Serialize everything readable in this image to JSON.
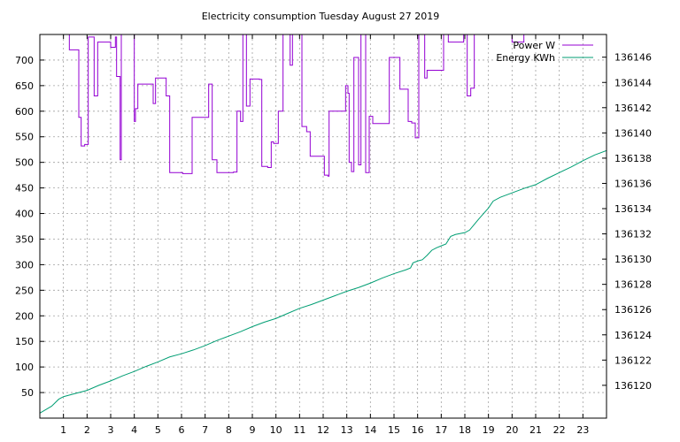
{
  "chart_data": {
    "type": "line",
    "title": "Electricity consumption Tuesday August 27 2019",
    "xlabel": "",
    "ylabel": "",
    "y2label": "",
    "xlim": [
      0,
      24
    ],
    "ylim": [
      0,
      750
    ],
    "y2lim": [
      136117.4,
      136147.8
    ],
    "x_ticks": [
      1,
      2,
      3,
      4,
      5,
      6,
      7,
      8,
      9,
      10,
      11,
      12,
      13,
      14,
      15,
      16,
      17,
      18,
      19,
      20,
      21,
      22,
      23
    ],
    "y_ticks": [
      50,
      100,
      150,
      200,
      250,
      300,
      350,
      400,
      450,
      500,
      550,
      600,
      650,
      700
    ],
    "y2_ticks": [
      136120,
      136122,
      136124,
      136126,
      136128,
      136130,
      136132,
      136134,
      136136,
      136138,
      136140,
      136142,
      136144,
      136146
    ],
    "grid": true,
    "legend_position": "top-right",
    "series": [
      {
        "name": "Power W",
        "axis": "y",
        "color": "#9400d3",
        "step": true,
        "x": [
          0.98,
          1.25,
          1.65,
          1.75,
          1.9,
          2.05,
          2.3,
          2.45,
          3.0,
          3.2,
          3.25,
          3.4,
          3.45,
          4.0,
          4.05,
          4.15,
          4.5,
          4.8,
          4.9,
          5.0,
          5.35,
          5.5,
          6.0,
          6.05,
          6.45,
          6.5,
          7.15,
          7.2,
          7.3,
          7.5,
          8.05,
          8.2,
          8.35,
          8.5,
          8.6,
          8.75,
          8.9,
          9.3,
          9.4,
          9.65,
          9.8,
          9.9,
          10.1,
          10.3,
          10.6,
          10.7,
          11.0,
          11.1,
          11.3,
          11.45,
          11.9,
          12.05,
          12.2,
          12.25,
          12.95,
          13.0,
          13.05,
          13.1,
          13.2,
          13.3,
          13.5,
          13.6,
          13.8,
          13.95,
          14.1,
          14.8,
          15.1,
          15.25,
          15.5,
          15.6,
          15.75,
          15.9,
          16.05,
          16.3,
          16.4,
          17.1,
          17.3,
          17.95,
          18.1,
          18.25,
          18.4,
          18.6,
          20.0,
          20.2,
          20.5,
          24.0
        ],
        "values": [
          750,
          720,
          588,
          532,
          535,
          745,
          630,
          735,
          725,
          745,
          668,
          505,
          750,
          580,
          605,
          653,
          653,
          615,
          665,
          665,
          630,
          480,
          480,
          478,
          588,
          588,
          653,
          653,
          505,
          480,
          480,
          481,
          600,
          580,
          750,
          610,
          663,
          662,
          492,
          490,
          540,
          537,
          600,
          750,
          690,
          750,
          750,
          570,
          560,
          512,
          512,
          475,
          473,
          600,
          650,
          650,
          635,
          500,
          482,
          705,
          495,
          750,
          480,
          590,
          576,
          705,
          705,
          643,
          643,
          580,
          577,
          548,
          750,
          665,
          680,
          750,
          735,
          750,
          630,
          645,
          750,
          750,
          735,
          735,
          750,
          750
        ]
      },
      {
        "name": "Energy KWh",
        "axis": "y2",
        "color": "#009e73",
        "step": false,
        "x": [
          0,
          0.5,
          0.8,
          1,
          1.5,
          2,
          2.5,
          3,
          3.5,
          4,
          4.5,
          5,
          5.5,
          6,
          6.5,
          7,
          7.5,
          8,
          8.5,
          9,
          9.5,
          10,
          10.5,
          11,
          11.5,
          12,
          12.5,
          13,
          13.5,
          14,
          14.5,
          15,
          15.5,
          15.7,
          15.8,
          16,
          16.2,
          16.4,
          16.6,
          16.8,
          17.0,
          17.2,
          17.4,
          17.6,
          18.0,
          18.2,
          18.6,
          19.0,
          19.2,
          19.5,
          20,
          20.5,
          21,
          21.5,
          22,
          22.5,
          23,
          23.5,
          24
        ],
        "values": [
          136117.8,
          136118.35,
          136118.9,
          136119.1,
          136119.35,
          136119.6,
          136120.0,
          136120.35,
          136120.75,
          136121.1,
          136121.5,
          136121.85,
          136122.25,
          136122.5,
          136122.8,
          136123.15,
          136123.55,
          136123.9,
          136124.25,
          136124.65,
          136125.0,
          136125.3,
          136125.7,
          136126.1,
          136126.4,
          136126.75,
          136127.1,
          136127.45,
          136127.75,
          136128.1,
          136128.5,
          136128.85,
          136129.15,
          136129.3,
          136129.7,
          136129.85,
          136129.95,
          136130.3,
          136130.7,
          136130.9,
          136131.05,
          136131.2,
          136131.8,
          136131.95,
          136132.1,
          136132.3,
          136133.2,
          136134.05,
          136134.6,
          136134.9,
          136135.25,
          136135.6,
          136135.9,
          136136.4,
          136136.85,
          136137.3,
          136137.8,
          136138.25,
          136138.6
        ]
      }
    ]
  }
}
